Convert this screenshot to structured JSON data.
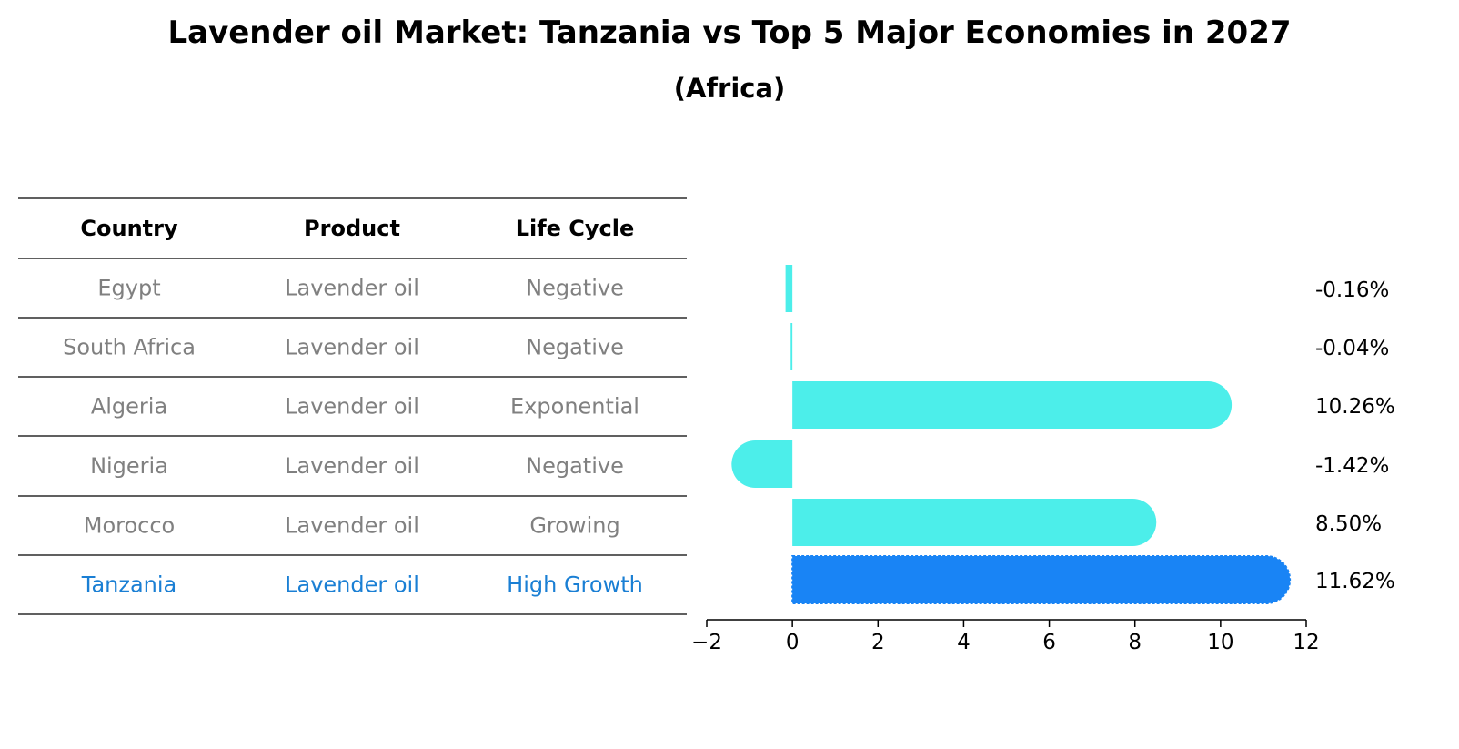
{
  "title": "Lavender oil Market: Tanzania vs Top 5 Major Economies in 2027",
  "subtitle": "(Africa)",
  "colors": {
    "header_text": "#000000",
    "normal_text": "#808080",
    "highlight_text": "#1a7fd4",
    "bar": "#4ceeea",
    "highlight_bar": "#1984f5",
    "rule": "#000000"
  },
  "table": {
    "columns": [
      "Country",
      "Product",
      "Life Cycle"
    ],
    "rows": [
      {
        "country": "Egypt",
        "product": "Lavender oil",
        "life_cycle": "Negative",
        "highlight": false
      },
      {
        "country": "South Africa",
        "product": "Lavender oil",
        "life_cycle": "Negative",
        "highlight": false
      },
      {
        "country": "Algeria",
        "product": "Lavender oil",
        "life_cycle": "Exponential",
        "highlight": false
      },
      {
        "country": "Nigeria",
        "product": "Lavender oil",
        "life_cycle": "Negative",
        "highlight": false
      },
      {
        "country": "Morocco",
        "product": "Lavender oil",
        "life_cycle": "Growing",
        "highlight": false
      },
      {
        "country": "Tanzania",
        "product": "Lavender oil",
        "life_cycle": "High Growth",
        "highlight": true
      }
    ]
  },
  "chart_data": {
    "type": "bar",
    "orientation": "horizontal",
    "categories": [
      "Egypt",
      "South Africa",
      "Algeria",
      "Nigeria",
      "Morocco",
      "Tanzania"
    ],
    "values": [
      -0.16,
      -0.04,
      10.26,
      -1.42,
      8.5,
      11.62
    ],
    "value_labels": [
      "-0.16%",
      "-0.04%",
      "10.26%",
      "-1.42%",
      "8.50%",
      "11.62%"
    ],
    "highlight": "Tanzania",
    "xlim": [
      -2,
      12
    ],
    "xticks": [
      -2,
      0,
      2,
      4,
      6,
      8,
      10,
      12
    ],
    "xtick_labels": [
      "−2",
      "0",
      "2",
      "4",
      "6",
      "8",
      "10",
      "12"
    ],
    "xlabel": "",
    "ylabel": "",
    "grid": false
  }
}
